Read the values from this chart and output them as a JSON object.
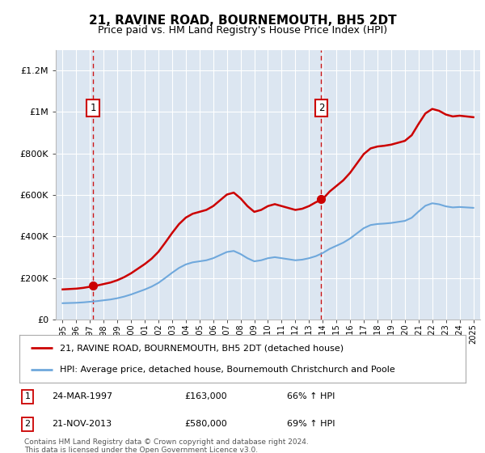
{
  "title": "21, RAVINE ROAD, BOURNEMOUTH, BH5 2DT",
  "subtitle": "Price paid vs. HM Land Registry's House Price Index (HPI)",
  "legend_line1": "21, RAVINE ROAD, BOURNEMOUTH, BH5 2DT (detached house)",
  "legend_line2": "HPI: Average price, detached house, Bournemouth Christchurch and Poole",
  "footnote": "Contains HM Land Registry data © Crown copyright and database right 2024.\nThis data is licensed under the Open Government Licence v3.0.",
  "sale1_date": 1997.23,
  "sale1_price": 163000,
  "sale2_date": 2013.895,
  "sale2_price": 580000,
  "hpi_color": "#6fa8dc",
  "sale_color": "#cc0000",
  "bg_color": "#dce6f1",
  "grid_color": "#ffffff",
  "ylim_max": 1300000,
  "ylim_min": 0,
  "xlim_min": 1994.5,
  "xlim_max": 2025.5,
  "years_hpi": [
    1995,
    1995.5,
    1996,
    1996.5,
    1997,
    1997.5,
    1998,
    1998.5,
    1999,
    1999.5,
    2000,
    2000.5,
    2001,
    2001.5,
    2002,
    2002.5,
    2003,
    2003.5,
    2004,
    2004.5,
    2005,
    2005.5,
    2006,
    2006.5,
    2007,
    2007.5,
    2008,
    2008.5,
    2009,
    2009.5,
    2010,
    2010.5,
    2011,
    2011.5,
    2012,
    2012.5,
    2013,
    2013.5,
    2014,
    2014.5,
    2015,
    2015.5,
    2016,
    2016.5,
    2017,
    2017.5,
    2018,
    2018.5,
    2019,
    2019.5,
    2020,
    2020.5,
    2021,
    2021.5,
    2022,
    2022.5,
    2023,
    2023.5,
    2024,
    2024.5,
    2025
  ],
  "hpi_values": [
    78000,
    79000,
    80000,
    82000,
    85000,
    88000,
    92000,
    96000,
    102000,
    110000,
    120000,
    132000,
    144000,
    158000,
    176000,
    200000,
    225000,
    248000,
    265000,
    275000,
    280000,
    285000,
    295000,
    310000,
    325000,
    330000,
    315000,
    295000,
    280000,
    285000,
    295000,
    300000,
    295000,
    290000,
    285000,
    288000,
    295000,
    305000,
    320000,
    340000,
    355000,
    370000,
    390000,
    415000,
    440000,
    455000,
    460000,
    462000,
    465000,
    470000,
    475000,
    490000,
    520000,
    548000,
    560000,
    555000,
    545000,
    540000,
    542000,
    540000,
    538000
  ]
}
